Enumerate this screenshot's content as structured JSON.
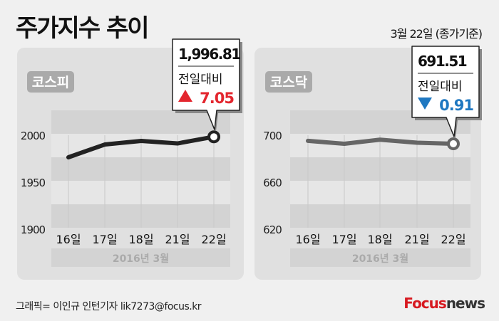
{
  "header": {
    "title": "주가지수 추이",
    "date": "3월 22일 (종가기준)"
  },
  "footer": {
    "credit": "그래픽= 이인규 인턴기자 lik7273@focus.kr",
    "logo": "Focus",
    "logo2": "news"
  },
  "colors": {
    "up": "#e3262e",
    "down": "#1f78c1",
    "kospi_line": "#222222",
    "kosdaq_line": "#666666"
  },
  "chart_data": [
    {
      "type": "line",
      "label": "코스피",
      "categories": [
        "16일",
        "17일",
        "18일",
        "21일",
        "22일"
      ],
      "values": [
        1975,
        1988.6,
        1992.4,
        1989.76,
        1996.81
      ],
      "yticks": [
        1900,
        1950,
        2000
      ],
      "ylim": [
        1900,
        2025
      ],
      "xlabel": "2016년 3월",
      "callout": {
        "value": "1,996.81",
        "label": "전일대비",
        "direction": "up",
        "change": "7.05"
      }
    },
    {
      "type": "line",
      "label": "코스닥",
      "categories": [
        "16일",
        "17일",
        "18일",
        "21일",
        "22일"
      ],
      "values": [
        694,
        691.5,
        695,
        692.42,
        691.51
      ],
      "yticks": [
        620,
        660,
        700
      ],
      "ylim": [
        620,
        720
      ],
      "xlabel": "2016년 3월",
      "callout": {
        "value": "691.51",
        "label": "전일대비",
        "direction": "down",
        "change": "0.91"
      }
    }
  ]
}
